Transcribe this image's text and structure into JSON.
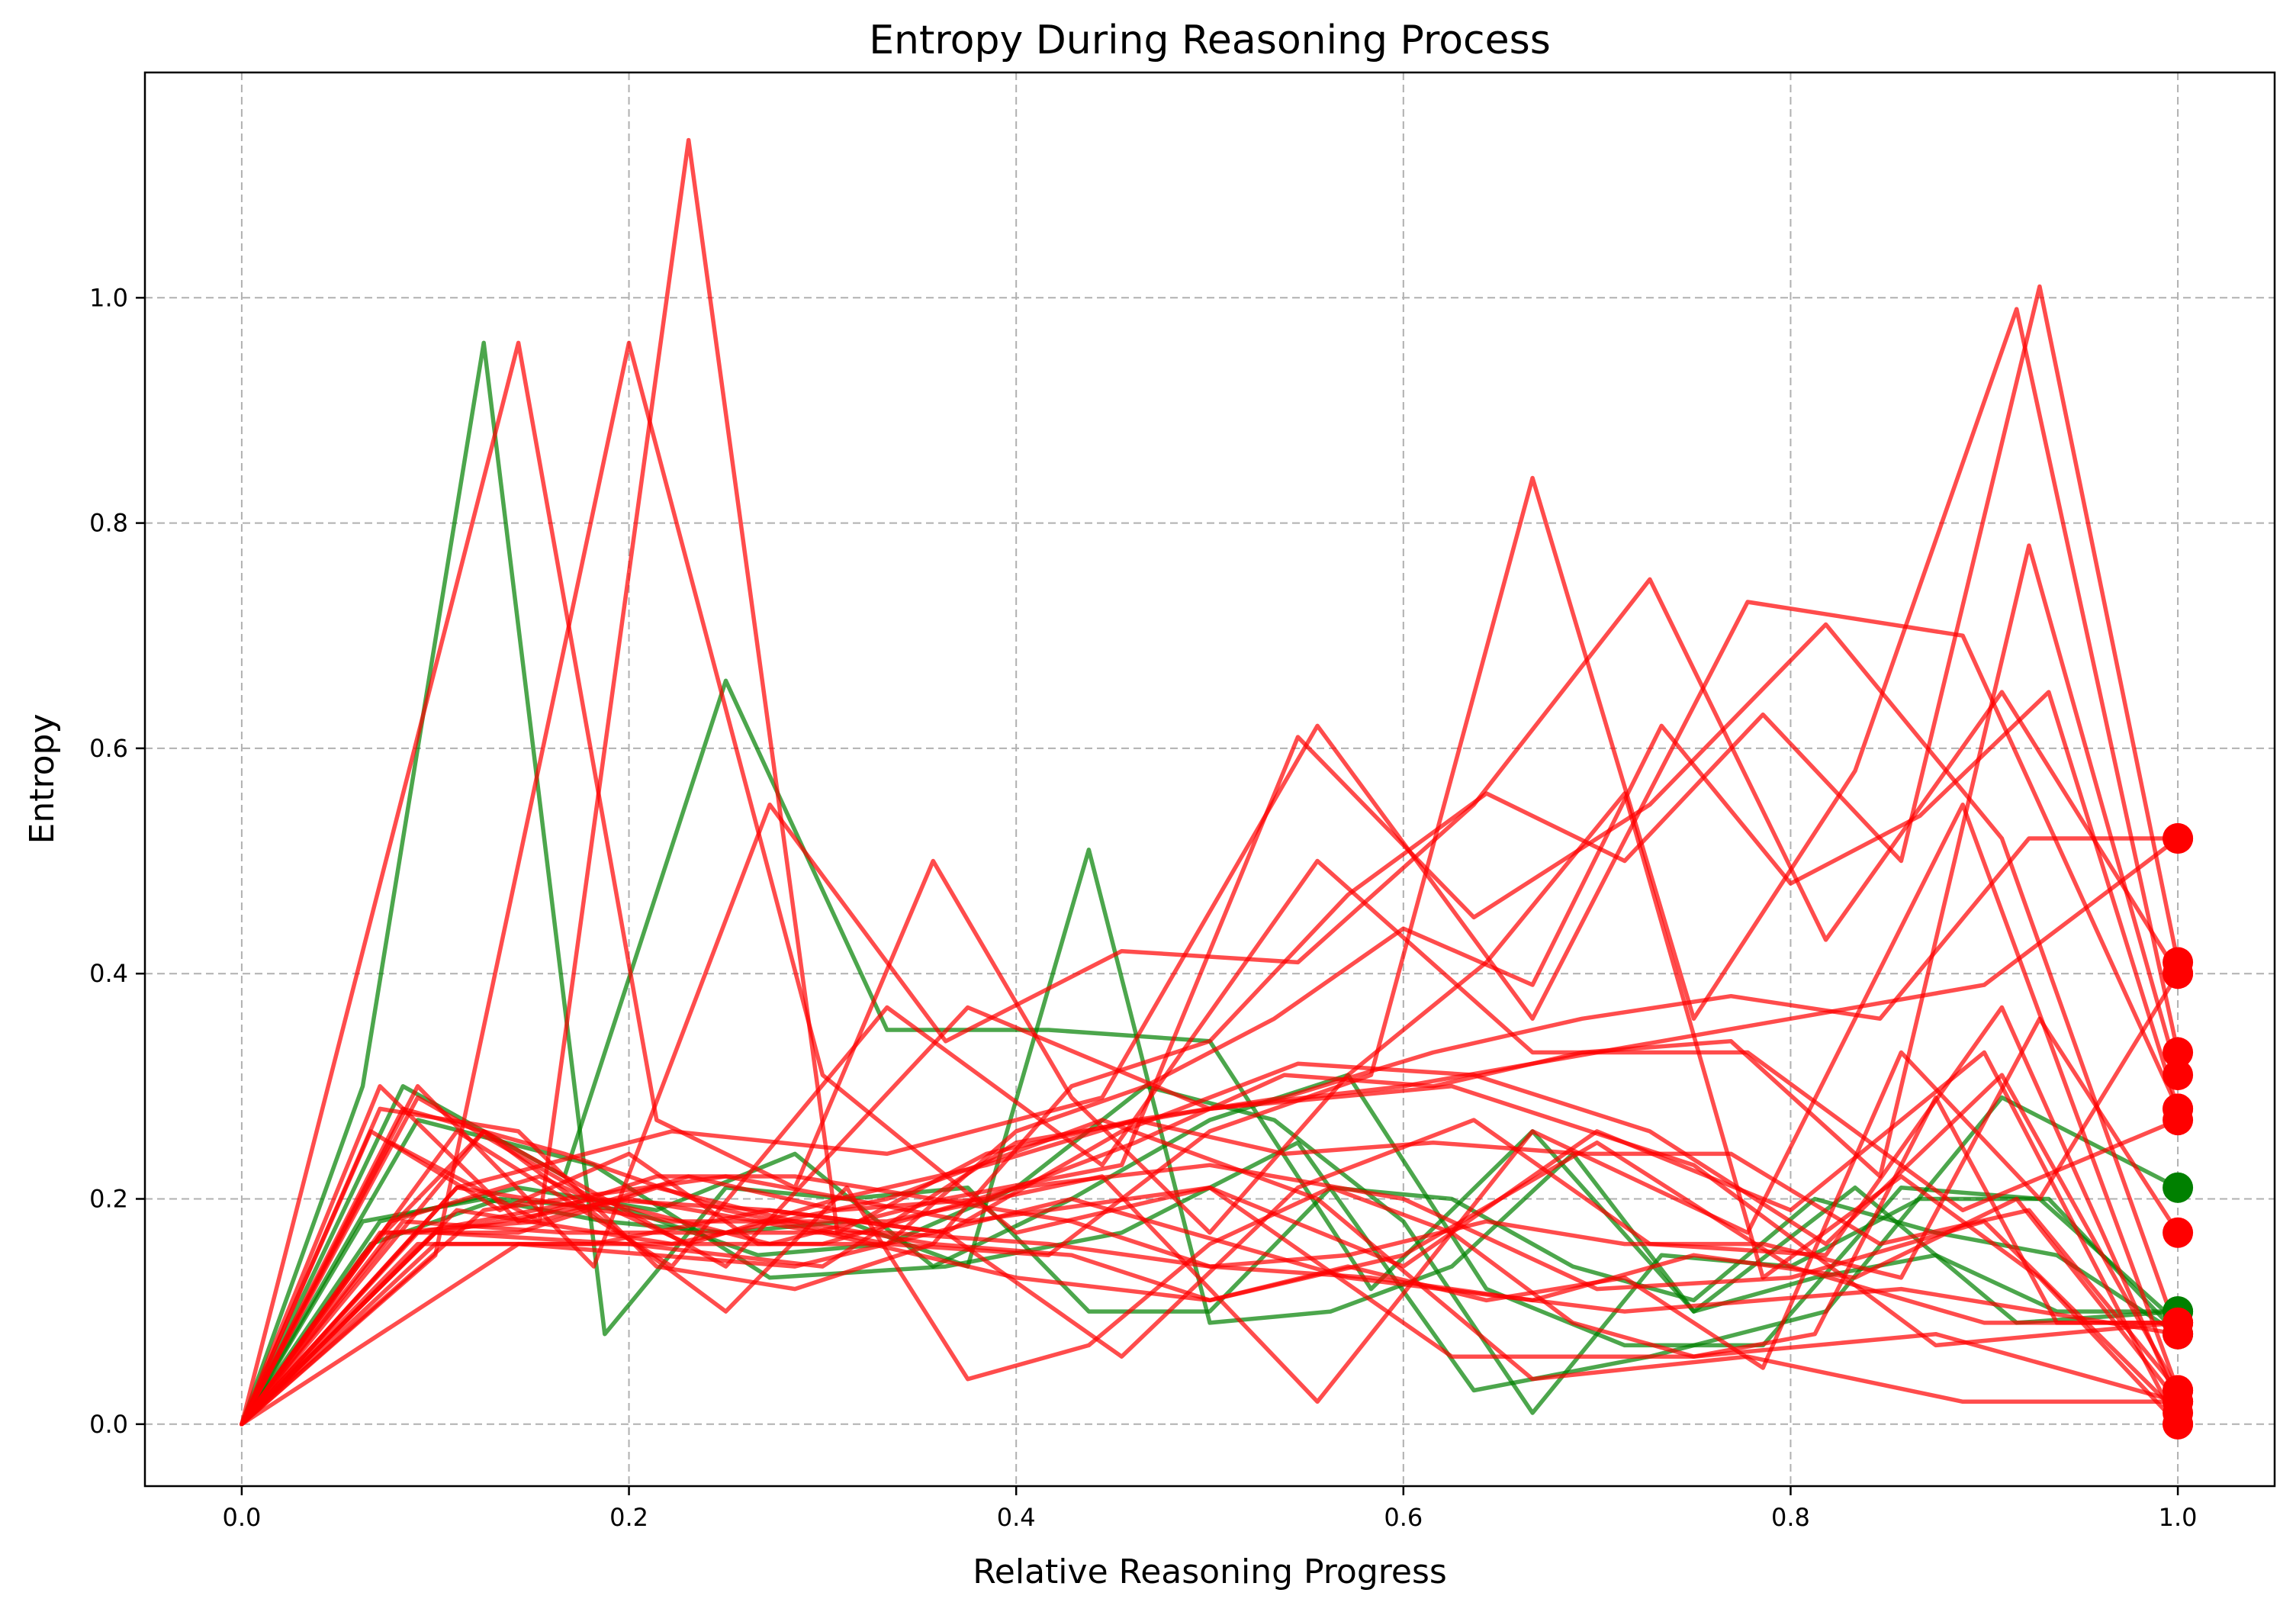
{
  "chart_data": {
    "type": "line",
    "title": "Entropy During Reasoning Process",
    "xlabel": "Relative Reasoning Progress",
    "ylabel": "Entropy",
    "xlim": [
      -0.05,
      1.05
    ],
    "ylim": [
      -0.055,
      1.2
    ],
    "xticks": [
      0.0,
      0.2,
      0.4,
      0.6,
      0.8,
      1.0
    ],
    "yticks": [
      0.0,
      0.2,
      0.4,
      0.6,
      0.8,
      1.0
    ],
    "xtick_labels": [
      "0.0",
      "0.2",
      "0.4",
      "0.6",
      "0.8",
      "1.0"
    ],
    "ytick_labels": [
      "0.0",
      "0.2",
      "0.4",
      "0.6",
      "0.8",
      "1.0"
    ],
    "grid": true,
    "colors": {
      "correct": "#008000",
      "incorrect": "#ff0000"
    },
    "series": [
      {
        "status": "correct",
        "x": [
          0,
          0.0625,
          0.125,
          0.1875,
          0.25,
          0.3125,
          0.375,
          0.4375,
          0.5,
          0.5625,
          0.625,
          0.6875,
          0.75,
          0.8125,
          0.875,
          0.9375,
          1.0
        ],
        "y": [
          0,
          0.3,
          0.96,
          0.08,
          0.21,
          0.2,
          0.21,
          0.1,
          0.1,
          0.21,
          0.2,
          0.14,
          0.11,
          0.2,
          0.17,
          0.15,
          0.08
        ]
      },
      {
        "status": "correct",
        "x": [
          0,
          0.0833,
          0.1667,
          0.25,
          0.3333,
          0.4167,
          0.5,
          0.5833,
          0.6667,
          0.75,
          0.8333,
          0.9167,
          1.0
        ],
        "y": [
          0,
          0.3,
          0.22,
          0.66,
          0.35,
          0.35,
          0.34,
          0.12,
          0.26,
          0.1,
          0.21,
          0.09,
          0.1
        ]
      },
      {
        "status": "correct",
        "x": [
          0,
          0.0714,
          0.1429,
          0.2143,
          0.2857,
          0.3571,
          0.4286,
          0.5,
          0.5714,
          0.6429,
          0.7143,
          0.7857,
          0.8571,
          0.9286,
          1.0
        ],
        "y": [
          0,
          0.18,
          0.21,
          0.19,
          0.24,
          0.14,
          0.2,
          0.27,
          0.31,
          0.12,
          0.07,
          0.07,
          0.21,
          0.2,
          0.09
        ]
      },
      {
        "status": "correct",
        "x": [
          0,
          0.0909,
          0.1818,
          0.2727,
          0.3636,
          0.4545,
          0.5455,
          0.6364,
          0.7273,
          0.8182,
          0.9091,
          1.0
        ],
        "y": [
          0,
          0.27,
          0.23,
          0.13,
          0.14,
          0.17,
          0.25,
          0.03,
          0.06,
          0.1,
          0.29,
          0.21
        ]
      },
      {
        "status": "correct",
        "x": [
          0,
          0.0667,
          0.1333,
          0.2,
          0.2667,
          0.3333,
          0.4,
          0.4667,
          0.5333,
          0.6,
          0.6667,
          0.7333,
          0.8,
          0.8667,
          0.9333,
          1.0
        ],
        "y": [
          0,
          0.16,
          0.2,
          0.19,
          0.15,
          0.16,
          0.21,
          0.3,
          0.27,
          0.18,
          0.01,
          0.15,
          0.14,
          0.2,
          0.2,
          0.08
        ]
      },
      {
        "status": "correct",
        "x": [
          0,
          0.0625,
          0.125,
          0.1875,
          0.25,
          0.3125,
          0.375,
          0.4375,
          0.5,
          0.5625,
          0.625,
          0.6875,
          0.75,
          0.8125,
          0.875,
          0.9375,
          1.0
        ],
        "y": [
          0,
          0.18,
          0.2,
          0.18,
          0.17,
          0.18,
          0.14,
          0.51,
          0.09,
          0.1,
          0.14,
          0.24,
          0.1,
          0.13,
          0.15,
          0.1,
          0.1
        ]
      },
      {
        "status": "incorrect",
        "x": [
          0,
          0.1429,
          0.2143,
          0.2857,
          0.3571,
          0.4286,
          0.5,
          0.5714,
          0.6429,
          0.7143,
          0.7857,
          0.8571,
          0.9286,
          1.0
        ],
        "y": [
          0,
          0.96,
          0.27,
          0.21,
          0.5,
          0.29,
          0.17,
          0.31,
          0.41,
          0.56,
          0.13,
          0.22,
          0.13,
          0.0
        ]
      },
      {
        "status": "incorrect",
        "x": [
          0,
          0.1,
          0.2,
          0.3,
          0.4,
          0.5,
          0.6,
          0.7,
          0.8,
          0.9,
          1.0
        ],
        "y": [
          0,
          0.15,
          0.96,
          0.31,
          0.17,
          0.21,
          0.14,
          0.26,
          0.19,
          0.33,
          0.0
        ]
      },
      {
        "status": "incorrect",
        "x": [
          0,
          0.0769,
          0.1538,
          0.2308,
          0.3077,
          0.3846,
          0.4615,
          0.5385,
          0.6154,
          0.6923,
          0.7692,
          0.8462,
          0.9231,
          1.0
        ],
        "y": [
          0,
          0.25,
          0.18,
          1.14,
          0.17,
          0.24,
          0.27,
          0.24,
          0.25,
          0.24,
          0.24,
          0.16,
          0.19,
          0.03
        ]
      },
      {
        "status": "incorrect",
        "x": [
          0,
          0.0909,
          0.1818,
          0.2727,
          0.3636,
          0.4545,
          0.5455,
          0.6364,
          0.7273,
          0.8182,
          0.9091,
          1.0
        ],
        "y": [
          0,
          0.3,
          0.14,
          0.55,
          0.34,
          0.42,
          0.41,
          0.55,
          0.75,
          0.43,
          0.65,
          0.4
        ]
      },
      {
        "status": "incorrect",
        "x": [
          0,
          0.0714,
          0.1429,
          0.2143,
          0.2857,
          0.3571,
          0.4286,
          0.5,
          0.5714,
          0.6429,
          0.7143,
          0.7857,
          0.8571,
          0.9286,
          1.0
        ],
        "y": [
          0,
          0.17,
          0.17,
          0.21,
          0.18,
          0.16,
          0.3,
          0.34,
          0.47,
          0.56,
          0.5,
          0.63,
          0.5,
          1.01,
          0.41
        ]
      },
      {
        "status": "incorrect",
        "x": [
          0,
          0.0909,
          0.1818,
          0.2727,
          0.3636,
          0.4545,
          0.5455,
          0.6364,
          0.7273,
          0.8182,
          0.9091,
          1.0
        ],
        "y": [
          0,
          0.17,
          0.2,
          0.16,
          0.2,
          0.23,
          0.61,
          0.45,
          0.55,
          0.71,
          0.52,
          0.08
        ]
      },
      {
        "status": "incorrect",
        "x": [
          0,
          0.0833,
          0.1667,
          0.25,
          0.3333,
          0.4167,
          0.5,
          0.5833,
          0.6667,
          0.75,
          0.8333,
          0.9167,
          1.0
        ],
        "y": [
          0,
          0.28,
          0.24,
          0.19,
          0.16,
          0.15,
          0.26,
          0.31,
          0.84,
          0.36,
          0.58,
          0.99,
          0.33
        ]
      },
      {
        "status": "incorrect",
        "x": [
          0,
          0.1111,
          0.2222,
          0.3333,
          0.4444,
          0.5556,
          0.6667,
          0.7778,
          0.8889,
          1.0
        ],
        "y": [
          0,
          0.21,
          0.26,
          0.24,
          0.29,
          0.62,
          0.36,
          0.73,
          0.7,
          0.28
        ]
      },
      {
        "status": "incorrect",
        "x": [
          0,
          0.1111,
          0.2222,
          0.3333,
          0.4444,
          0.5556,
          0.6667,
          0.7778,
          0.8889,
          1.0
        ],
        "y": [
          0,
          0.26,
          0.14,
          0.37,
          0.23,
          0.5,
          0.33,
          0.33,
          0.19,
          0.27
        ]
      },
      {
        "status": "incorrect",
        "x": [
          0,
          0.1,
          0.2,
          0.3,
          0.4,
          0.5,
          0.6,
          0.7,
          0.8,
          0.9,
          1.0
        ],
        "y": [
          0,
          0.16,
          0.16,
          0.14,
          0.25,
          0.28,
          0.3,
          0.33,
          0.36,
          0.39,
          0.52
        ]
      },
      {
        "status": "incorrect",
        "x": [
          0,
          0.0769,
          0.1538,
          0.2308,
          0.3077,
          0.3846,
          0.4615,
          0.5385,
          0.6154,
          0.6923,
          0.7692,
          0.8462,
          0.9231,
          1.0
        ],
        "y": [
          0,
          0.18,
          0.22,
          0.16,
          0.2,
          0.23,
          0.27,
          0.29,
          0.33,
          0.36,
          0.38,
          0.36,
          0.52,
          0.52
        ]
      },
      {
        "status": "incorrect",
        "x": [
          0,
          0.0714,
          0.1429,
          0.2143,
          0.2857,
          0.3571,
          0.4286,
          0.5,
          0.5714,
          0.6429,
          0.7143,
          0.7857,
          0.8571,
          0.9286,
          1.0
        ],
        "y": [
          0,
          0.3,
          0.18,
          0.22,
          0.22,
          0.2,
          0.18,
          0.14,
          0.15,
          0.18,
          0.16,
          0.16,
          0.13,
          0.36,
          0.17
        ]
      },
      {
        "status": "incorrect",
        "x": [
          0,
          0.0625,
          0.125,
          0.1875,
          0.25,
          0.3125,
          0.375,
          0.4375,
          0.5,
          0.5625,
          0.625,
          0.6875,
          0.75,
          0.8125,
          0.875,
          0.9375,
          1.0
        ],
        "y": [
          0,
          0.15,
          0.26,
          0.18,
          0.1,
          0.21,
          0.04,
          0.07,
          0.16,
          0.21,
          0.17,
          0.09,
          0.06,
          0.08,
          0.29,
          0.09,
          0.09
        ]
      },
      {
        "status": "incorrect",
        "x": [
          0,
          0.0833,
          0.1667,
          0.25,
          0.3333,
          0.4167,
          0.5,
          0.5833,
          0.6667,
          0.75,
          0.8333,
          0.9167,
          1.0
        ],
        "y": [
          0,
          0.18,
          0.17,
          0.17,
          0.17,
          0.16,
          0.14,
          0.13,
          0.11,
          0.15,
          0.13,
          0.2,
          0.02
        ]
      },
      {
        "status": "incorrect",
        "x": [
          0,
          0.0909,
          0.1818,
          0.2727,
          0.3636,
          0.4545,
          0.5455,
          0.6364,
          0.7273,
          0.8182,
          0.9091,
          1.0
        ],
        "y": [
          0,
          0.29,
          0.2,
          0.19,
          0.17,
          0.06,
          0.21,
          0.27,
          0.16,
          0.15,
          0.37,
          0.02
        ]
      },
      {
        "status": "incorrect",
        "x": [
          0,
          0.1,
          0.2,
          0.3,
          0.4,
          0.5,
          0.6,
          0.7,
          0.8,
          0.9,
          1.0
        ],
        "y": [
          0,
          0.17,
          0.2,
          0.17,
          0.13,
          0.11,
          0.15,
          0.25,
          0.14,
          0.09,
          0.09
        ]
      },
      {
        "status": "incorrect",
        "x": [
          0,
          0.1429,
          0.2857,
          0.4286,
          0.5714,
          0.7143,
          0.8571,
          1.0
        ],
        "y": [
          0,
          0.16,
          0.14,
          0.2,
          0.13,
          0.1,
          0.12,
          0.08
        ]
      },
      {
        "status": "incorrect",
        "x": [
          0,
          0.125,
          0.25,
          0.375,
          0.5,
          0.625,
          0.75,
          0.875,
          1.0
        ],
        "y": [
          0,
          0.19,
          0.22,
          0.18,
          0.21,
          0.06,
          0.06,
          0.08,
          0.02
        ]
      },
      {
        "status": "incorrect",
        "x": [
          0,
          0.1111,
          0.2222,
          0.3333,
          0.4444,
          0.5556,
          0.6667,
          0.7778,
          0.8889,
          1.0
        ],
        "y": [
          0,
          0.21,
          0.18,
          0.18,
          0.22,
          0.02,
          0.26,
          0.17,
          0.55,
          0.03
        ]
      },
      {
        "status": "incorrect",
        "x": [
          0,
          0.0667,
          0.1333,
          0.2,
          0.2667,
          0.3333,
          0.4,
          0.4667,
          0.5333,
          0.6,
          0.6667,
          0.7333,
          0.8,
          0.8667,
          0.9333,
          1.0
        ],
        "y": [
          0,
          0.26,
          0.19,
          0.24,
          0.16,
          0.16,
          0.26,
          0.3,
          0.36,
          0.44,
          0.39,
          0.62,
          0.48,
          0.54,
          0.65,
          0.28
        ]
      },
      {
        "status": "incorrect",
        "x": [
          0,
          0.1,
          0.2,
          0.3,
          0.4,
          0.5,
          0.6,
          0.7,
          0.8,
          0.9,
          1.0
        ],
        "y": [
          0,
          0.17,
          0.16,
          0.16,
          0.21,
          0.23,
          0.2,
          0.12,
          0.13,
          0.18,
          0.01
        ]
      },
      {
        "status": "incorrect",
        "x": [
          0,
          0.125,
          0.25,
          0.375,
          0.5,
          0.625,
          0.75,
          0.875,
          1.0
        ],
        "y": [
          0,
          0.26,
          0.14,
          0.37,
          0.28,
          0.3,
          0.23,
          0.07,
          0.09
        ]
      },
      {
        "status": "incorrect",
        "x": [
          0,
          0.0909,
          0.1818,
          0.2727,
          0.3636,
          0.4545,
          0.5455,
          0.6364,
          0.7273,
          0.8182,
          0.9091,
          1.0
        ],
        "y": [
          0,
          0.16,
          0.16,
          0.19,
          0.17,
          0.26,
          0.32,
          0.31,
          0.26,
          0.16,
          0.31,
          0.03
        ]
      },
      {
        "status": "incorrect",
        "x": [
          0,
          0.1111,
          0.2222,
          0.3333,
          0.4444,
          0.5556,
          0.6667,
          0.7778,
          0.8889,
          1.0
        ],
        "y": [
          0,
          0.19,
          0.16,
          0.2,
          0.27,
          0.2,
          0.04,
          0.06,
          0.02,
          0.02
        ]
      },
      {
        "status": "incorrect",
        "x": [
          0,
          0.0769,
          0.1538,
          0.2308,
          0.3077,
          0.3846,
          0.4615,
          0.5385,
          0.6154,
          0.6923,
          0.7692,
          0.8462,
          0.9231,
          1.0
        ],
        "y": [
          0,
          0.17,
          0.18,
          0.22,
          0.19,
          0.2,
          0.25,
          0.31,
          0.3,
          0.33,
          0.34,
          0.22,
          0.78,
          0.31
        ]
      },
      {
        "status": "incorrect",
        "x": [
          0,
          0.0714,
          0.1429,
          0.2143,
          0.2857,
          0.3571,
          0.4286,
          0.5,
          0.5714,
          0.6429,
          0.7143,
          0.7857,
          0.8571,
          0.9286,
          1.0
        ],
        "y": [
          0,
          0.28,
          0.26,
          0.14,
          0.12,
          0.16,
          0.15,
          0.11,
          0.14,
          0.11,
          0.13,
          0.05,
          0.33,
          0.2,
          0.4
        ]
      }
    ]
  }
}
